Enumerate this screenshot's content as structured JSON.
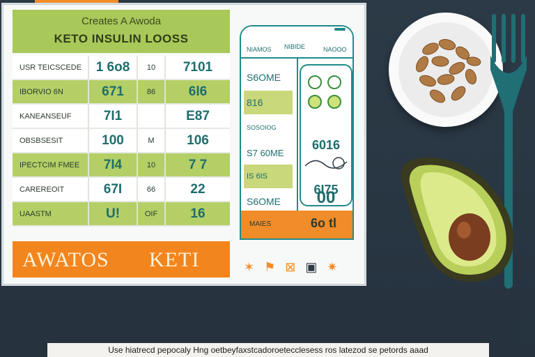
{
  "board": {
    "title_line1": "Creates A Awoda",
    "title_line2": "KETO INSULIN LOOSS",
    "rows": [
      {
        "label": "USR TEICSCEDE",
        "a": "1 6o8",
        "unit": "10",
        "b": "7101",
        "style": "white"
      },
      {
        "label": "IBORVIO   6N",
        "a": "671",
        "unit": "86",
        "b": "6l6",
        "style": "green"
      },
      {
        "label": "KANEANSEUF",
        "a": "7I1",
        "unit": "",
        "b": "E87",
        "style": "white"
      },
      {
        "label": "OBSBSESIT",
        "a": "100",
        "unit": "M",
        "b": "106",
        "style": "white"
      },
      {
        "label": "IPECTCIM FMEE",
        "a": "7I4",
        "unit": "10",
        "b": "7 7",
        "style": "green"
      },
      {
        "label": "CAREREOIT",
        "a": "67I",
        "unit": "66",
        "b": "22",
        "style": "white"
      },
      {
        "label": "UAASTM",
        "a": "U!",
        "unit": "OIF",
        "b": "16",
        "style": "green"
      }
    ],
    "banner_left": "AWATOS",
    "banner_right": "KETI"
  },
  "phone": {
    "header_left": "NIAMOS",
    "header_mid": "NIBIDE",
    "header_right": "NAOOO",
    "left_rows": [
      {
        "text": "S6OME",
        "style": "white"
      },
      {
        "text": "816",
        "style": "green"
      },
      {
        "text": "SOSOIOG",
        "style": "white"
      },
      {
        "text": "S7 60ME",
        "style": "white"
      },
      {
        "text": "IS 6IS",
        "style": "green"
      },
      {
        "text": "S6OME",
        "style": "white"
      }
    ],
    "right_values": [
      "6016",
      "6I75",
      "00"
    ],
    "footer_left": "MAIES",
    "footer_right": "6o tl"
  },
  "caption": "Use hiatrecd pepocaly Hng oetbeyfaxstcadoroetecclesess ros latezod se petords aaad",
  "colors": {
    "green": "#b4cf66",
    "orange": "#f2851e",
    "teal": "#1f8a8a",
    "background": "#2a3744"
  }
}
